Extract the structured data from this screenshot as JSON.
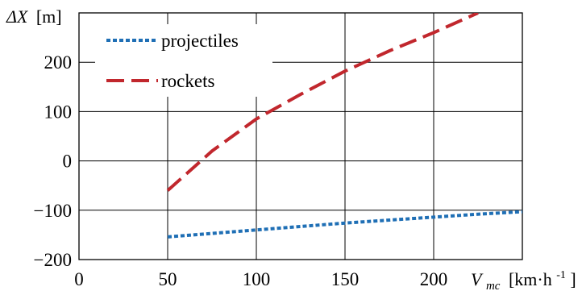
{
  "chart_data": {
    "type": "line",
    "ylabel": {
      "symbol": "ΔX",
      "unit": "[m]"
    },
    "xlabel": {
      "symbol": "V",
      "subscript": "mc",
      "unit": "[km·h",
      "exponent": "-1",
      "unit_end": "]"
    },
    "xlim": [
      0,
      250
    ],
    "ylim": [
      -200,
      300
    ],
    "x_ticks": [
      {
        "value": 0,
        "label": "0"
      },
      {
        "value": 50,
        "label": "50"
      },
      {
        "value": 100,
        "label": "100"
      },
      {
        "value": 150,
        "label": "150"
      },
      {
        "value": 200,
        "label": "200"
      }
    ],
    "y_ticks": [
      {
        "value": -200,
        "label": "−200"
      },
      {
        "value": -100,
        "label": "−100"
      },
      {
        "value": 0,
        "label": "0"
      },
      {
        "value": 100,
        "label": "100"
      },
      {
        "value": 200,
        "label": "200"
      }
    ],
    "grid": true,
    "legend": "top-left",
    "series": [
      {
        "name": "projectiles",
        "color": "#1f6fb5",
        "style": "dotted",
        "x": [
          50,
          75,
          100,
          125,
          150,
          175,
          200,
          225,
          250
        ],
        "y": [
          -154,
          -147,
          -140,
          -133,
          -126,
          -120,
          -114,
          -108,
          -103
        ]
      },
      {
        "name": "rockets",
        "color": "#c1272d",
        "style": "dashed",
        "x": [
          50,
          75,
          100,
          125,
          150,
          175,
          200,
          225
        ],
        "y": [
          -60,
          20,
          85,
          135,
          182,
          223,
          260,
          300
        ]
      }
    ]
  }
}
